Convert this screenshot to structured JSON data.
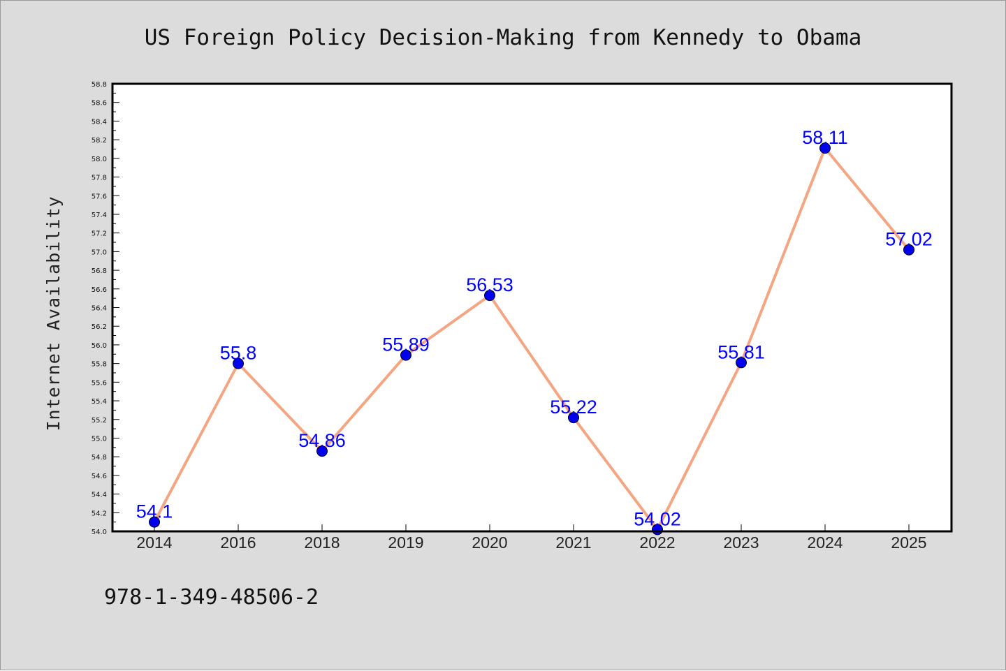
{
  "chart_data": {
    "type": "line",
    "title": "US Foreign Policy Decision-Making from Kennedy to Obama",
    "xlabel": "",
    "ylabel": "Internet Availability",
    "categories": [
      "2014",
      "2016",
      "2018",
      "2019",
      "2020",
      "2021",
      "2022",
      "2023",
      "2024",
      "2025"
    ],
    "series": [
      {
        "values": [
          54.1,
          55.8,
          54.86,
          55.89,
          56.53,
          55.22,
          54.02,
          55.81,
          58.11,
          57.02
        ]
      }
    ],
    "data_labels": [
      "54.1",
      "55.8",
      "54.86",
      "55.89",
      "56.53",
      "55.22",
      "54.02",
      "55.81",
      "58.11",
      "57.02"
    ],
    "ylim": [
      54.0,
      58.8
    ],
    "yticks": [
      "54.0",
      "54.2",
      "54.4",
      "54.6",
      "54.8",
      "55.0",
      "55.2",
      "55.4",
      "55.6",
      "55.8",
      "56.0",
      "56.2",
      "56.4",
      "56.6",
      "56.8",
      "57.0",
      "57.2",
      "57.4",
      "57.6",
      "57.8",
      "58.0",
      "58.2",
      "58.4",
      "58.6",
      "58.8"
    ],
    "grid": false,
    "legend": "none",
    "colors": {
      "line": "#f4a582",
      "marker": "#0000ee",
      "label": "#0000ff",
      "background": "#dcdcdc",
      "plot_background": "#ffffff"
    }
  },
  "footer": {
    "isbn": "978-1-349-48506-2"
  }
}
